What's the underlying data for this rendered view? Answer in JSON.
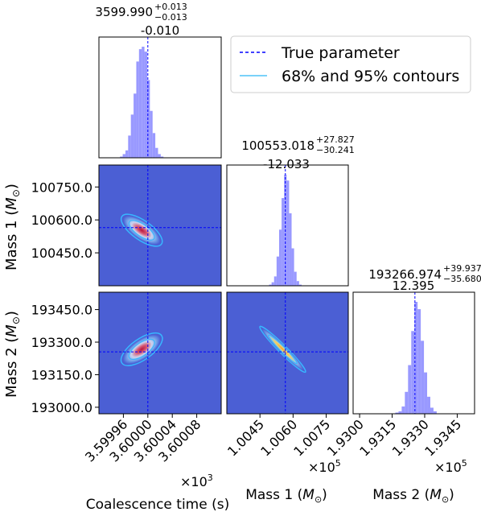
{
  "legend": {
    "true_parameter": "True parameter",
    "contours": "68% and 95% contours",
    "true_color": "#0000ff",
    "contour_color": "#4fc3f7"
  },
  "colors": {
    "hist_fill": "#9999ff",
    "panel_bg": "#4b5fd4",
    "density_high": "#c0204a",
    "contour": "#38b6ff",
    "true_line": "#0000ff"
  },
  "chart_data": {
    "type": "corner",
    "parameters": [
      {
        "name": "Coalescence time (s)",
        "label": "Coalescence time (s)",
        "title_main": "3599.990",
        "title_plus": "+0.013",
        "title_minus": "−0.013",
        "title_bias": "-0.010",
        "ticks": [
          "3.59996",
          "3.60000",
          "3.60004",
          "3.60008"
        ],
        "tick_values": [
          3599.96,
          3600.0,
          3600.04,
          3600.08
        ],
        "range": [
          3599.92,
          3600.12
        ],
        "offset_label": "×10",
        "offset_exp": "3",
        "true_value": 3600.0,
        "hist_bins": [
          0,
          1,
          3,
          6,
          18,
          35,
          52,
          78,
          88,
          90,
          86,
          63,
          38,
          20,
          8,
          3,
          1,
          0
        ]
      },
      {
        "name": "Mass 1 (M⊙)",
        "label": "Mass 1",
        "title_main": "100553.018",
        "title_plus": "+27.827",
        "title_minus": "−30.241",
        "title_bias": "-12.033",
        "ticks_x": [
          "1.0045",
          "1.0060",
          "1.0075"
        ],
        "ticks_y": [
          "100750.0",
          "100600.0",
          "100450.0"
        ],
        "tick_values": [
          100450,
          100600,
          100750
        ],
        "range": [
          100300,
          100850
        ],
        "offset_label": "×10",
        "offset_exp": "5",
        "true_value": 100565,
        "hist_bins": [
          0,
          1,
          3,
          8,
          25,
          48,
          75,
          95,
          90,
          62,
          32,
          12,
          4,
          1,
          0
        ]
      },
      {
        "name": "Mass 2 (M⊙)",
        "label": "Mass 2",
        "title_main": "193266.974",
        "title_plus": "+39.937",
        "title_minus": "−35.680",
        "title_bias": "12.395",
        "ticks_x": [
          "1.9300",
          "1.9315",
          "1.9330",
          "1.9345"
        ],
        "ticks_y": [
          "193450.0",
          "193300.0",
          "193150.0",
          "193000.0"
        ],
        "tick_values": [
          193000,
          193150,
          193300,
          193450
        ],
        "range": [
          192970,
          193530
        ],
        "offset_label": "×10",
        "offset_exp": "5",
        "true_value": 193255,
        "hist_bins": [
          0,
          1,
          2,
          6,
          18,
          40,
          68,
          92,
          86,
          60,
          34,
          14,
          5,
          2,
          0
        ]
      }
    ],
    "ylabels": {
      "mass1": "Mass 1",
      "mass2": "Mass 2",
      "unit": "M",
      "unit_sub": "⊙"
    }
  }
}
